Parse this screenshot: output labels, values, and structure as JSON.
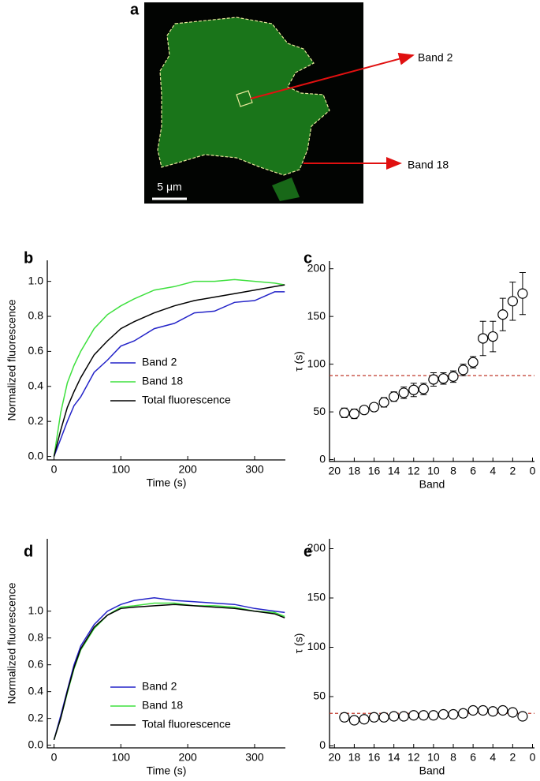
{
  "panel_a": {
    "label": "a",
    "annotations": [
      "Band 2",
      "Band 18"
    ],
    "scale_bar": "5 μm"
  },
  "chart_data": [
    {
      "type": "line",
      "label": "b",
      "xlabel": "Time (s)",
      "ylabel": "Normalized fluorescence",
      "x": [
        0,
        10,
        20,
        30,
        40,
        60,
        80,
        100,
        120,
        150,
        180,
        210,
        240,
        270,
        300,
        330,
        345
      ],
      "series": [
        {
          "name": "Band 2",
          "color": "#2323c8",
          "values": [
            0,
            0.1,
            0.2,
            0.29,
            0.34,
            0.48,
            0.55,
            0.63,
            0.66,
            0.73,
            0.76,
            0.82,
            0.83,
            0.88,
            0.89,
            0.94,
            0.94
          ]
        },
        {
          "name": "Band 18",
          "color": "#3ee03e",
          "values": [
            0,
            0.25,
            0.42,
            0.52,
            0.6,
            0.73,
            0.81,
            0.86,
            0.9,
            0.95,
            0.97,
            1.0,
            1.0,
            1.01,
            1.0,
            0.99,
            0.98
          ]
        },
        {
          "name": "Total fluorescence",
          "color": "#000000",
          "values": [
            0,
            0.15,
            0.28,
            0.37,
            0.45,
            0.58,
            0.66,
            0.73,
            0.77,
            0.82,
            0.86,
            0.89,
            0.91,
            0.93,
            0.95,
            0.97,
            0.98
          ]
        }
      ],
      "xlim": [
        -10,
        346
      ],
      "ylim": [
        -0.02,
        1.12
      ],
      "xticks": [
        0,
        100,
        200,
        300
      ],
      "yticks": [
        {
          "value": 0,
          "label": "0.0"
        },
        0.2,
        0.4,
        0.6,
        0.8,
        {
          "value": 1,
          "label": "1.0"
        }
      ]
    },
    {
      "type": "scatter",
      "label": "c",
      "xlabel": "Band",
      "ylabel": "τ (s)",
      "x": [
        19,
        18,
        17,
        16,
        15,
        14,
        13,
        12,
        11,
        10,
        9,
        8,
        7,
        6,
        5,
        4,
        3,
        2,
        1
      ],
      "values": [
        49,
        48,
        52,
        55,
        60,
        66,
        70,
        73,
        74,
        84,
        85,
        87,
        94,
        102,
        127,
        129,
        152,
        166,
        174
      ],
      "errors": [
        5,
        5,
        4,
        4,
        5,
        5,
        6,
        7,
        6,
        7,
        6,
        6,
        6,
        6,
        18,
        16,
        17,
        20,
        22
      ],
      "hline": 88,
      "hline_color": "#c0392b",
      "xlim": [
        20.5,
        -0.2
      ],
      "ylim": [
        -2,
        208
      ],
      "xticks": [
        20,
        18,
        16,
        14,
        12,
        10,
        8,
        6,
        4,
        2,
        0
      ],
      "yticks": [
        0,
        50,
        100,
        150,
        200
      ]
    },
    {
      "type": "line",
      "label": "d",
      "xlabel": "Time (s)",
      "ylabel": "Normalized fluorescence",
      "x": [
        0,
        10,
        20,
        30,
        40,
        60,
        80,
        100,
        120,
        150,
        180,
        210,
        240,
        270,
        300,
        330,
        345
      ],
      "series": [
        {
          "name": "Band 2",
          "color": "#2323c8",
          "values": [
            0.04,
            0.22,
            0.41,
            0.6,
            0.74,
            0.9,
            1.0,
            1.05,
            1.08,
            1.1,
            1.08,
            1.07,
            1.06,
            1.05,
            1.02,
            1.0,
            0.99
          ]
        },
        {
          "name": "Band 18",
          "color": "#3ee03e",
          "values": [
            0.04,
            0.2,
            0.39,
            0.57,
            0.71,
            0.87,
            0.97,
            1.03,
            1.04,
            1.06,
            1.06,
            1.04,
            1.04,
            1.03,
            1.0,
            0.99,
            0.96
          ]
        },
        {
          "name": "Total fluorescence",
          "color": "#000000",
          "values": [
            0.04,
            0.2,
            0.4,
            0.58,
            0.72,
            0.88,
            0.97,
            1.02,
            1.03,
            1.04,
            1.05,
            1.04,
            1.03,
            1.02,
            1.0,
            0.98,
            0.95
          ]
        }
      ],
      "xlim": [
        -10,
        346
      ],
      "ylim": [
        -0.02,
        1.54
      ],
      "xticks": [
        0,
        100,
        200,
        300
      ],
      "yticks": [
        {
          "value": 0,
          "label": "0.0"
        },
        0.2,
        0.4,
        0.6,
        0.8,
        {
          "value": 1,
          "label": "1.0"
        }
      ]
    },
    {
      "type": "scatter",
      "label": "e",
      "xlabel": "Band",
      "ylabel": "τ (s)",
      "x": [
        19,
        18,
        17,
        16,
        15,
        14,
        13,
        12,
        11,
        10,
        9,
        8,
        7,
        6,
        5,
        4,
        3,
        2,
        1
      ],
      "values": [
        29,
        26,
        27,
        29,
        29,
        30,
        30,
        31,
        31,
        31,
        32,
        32,
        33,
        36,
        36,
        35,
        36,
        34,
        30
      ],
      "errors": [
        4,
        4,
        4,
        4,
        4,
        4,
        4,
        4,
        4,
        4,
        4,
        4,
        4,
        4,
        4,
        4,
        4,
        4,
        4
      ],
      "hline": 33,
      "hline_color": "#c0392b",
      "xlim": [
        20.5,
        -0.2
      ],
      "ylim": [
        -2,
        210
      ],
      "xticks": [
        20,
        18,
        16,
        14,
        12,
        10,
        8,
        6,
        4,
        2,
        0
      ],
      "yticks": [
        0,
        50,
        100,
        150,
        200
      ]
    }
  ]
}
